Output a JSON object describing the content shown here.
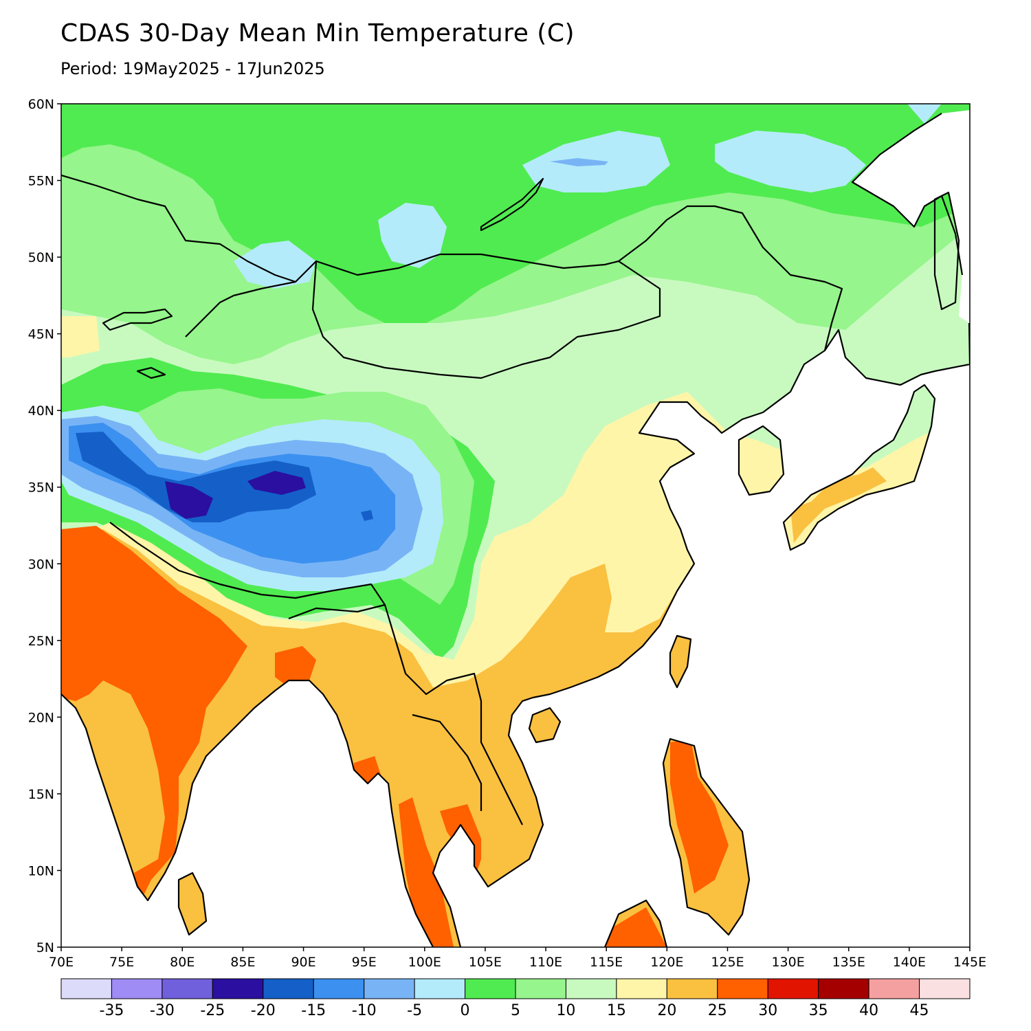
{
  "header": {
    "title": "CDAS 30-Day Mean Min Temperature (C)",
    "subtitle": "Period: 19May2025 - 17Jun2025"
  },
  "map": {
    "lon_range": [
      70,
      145
    ],
    "lat_range": [
      5,
      60
    ],
    "lat_ticks": [
      "60N",
      "55N",
      "50N",
      "45N",
      "40N",
      "35N",
      "30N",
      "25N",
      "20N",
      "15N",
      "10N",
      "5N"
    ],
    "lon_ticks": [
      "70E",
      "75E",
      "80E",
      "85E",
      "90E",
      "95E",
      "100E",
      "105E",
      "110E",
      "115E",
      "120E",
      "125E",
      "130E",
      "135E",
      "140E",
      "145E"
    ]
  },
  "legend": {
    "colors": [
      "#dcdcfa",
      "#a08cf5",
      "#7060dc",
      "#2a0fa0",
      "#1460c8",
      "#3c90f0",
      "#78b4f5",
      "#b4ebfa",
      "#50eb50",
      "#96f58c",
      "#c8fac0",
      "#fff5a8",
      "#fac040",
      "#ff6000",
      "#e11400",
      "#a50000",
      "#f5a0a0",
      "#fae0e0"
    ],
    "labels": [
      "-35",
      "-30",
      "-25",
      "-20",
      "-15",
      "-10",
      "-5",
      "0",
      "5",
      "10",
      "15",
      "20",
      "25",
      "30",
      "35",
      "40",
      "45"
    ]
  }
}
